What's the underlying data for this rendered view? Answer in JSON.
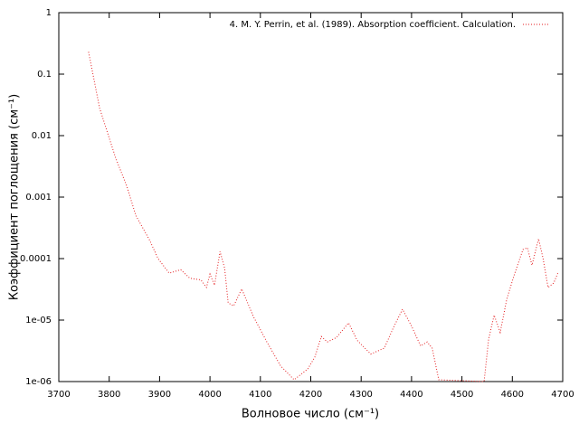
{
  "chart_data": {
    "type": "line",
    "log_y": true,
    "xlabel": "Волновое число (см⁻¹)",
    "ylabel": "Коэффициент поглощения (см⁻¹)",
    "legend": "top-right",
    "xlim": [
      3700,
      4700
    ],
    "xticks": [
      3700,
      3800,
      3900,
      4000,
      4100,
      4200,
      4300,
      4400,
      4500,
      4600,
      4700
    ],
    "ylim": [
      1e-06,
      1
    ],
    "yticks": [
      1,
      0.1,
      0.01,
      0.001,
      0.0001,
      {
        "value": 1e-05,
        "label": "1e-05"
      },
      {
        "value": 1e-06,
        "label": "1e-06"
      }
    ],
    "series": [
      {
        "name": "4. M. Y. Perrin, et al. (1989). Absorption coefficient. Calculation.",
        "color": "#e41a1c",
        "x": [
          3759,
          3781,
          3813,
          3835,
          3853,
          3880,
          3897,
          3919,
          3942,
          3960,
          3982,
          3993,
          4000,
          4009,
          4020,
          4029,
          4036,
          4047,
          4063,
          4086,
          4113,
          4140,
          4167,
          4194,
          4208,
          4221,
          4233,
          4251,
          4275,
          4292,
          4319,
          4346,
          4364,
          4382,
          4400,
          4418,
          4431,
          4441,
          4454,
          4544,
          4553,
          4564,
          4576,
          4589,
          4603,
          4621,
          4630,
          4639,
          4652,
          4661,
          4671,
          4682,
          4691
        ],
        "values": [
          0.23,
          0.028,
          0.0043,
          0.0015,
          0.0005,
          0.0002,
          0.0001,
          5.8e-05,
          6.6e-05,
          4.8e-05,
          4.5e-05,
          3.4e-05,
          5.6e-05,
          3.7e-05,
          0.00013,
          7e-05,
          1.9e-05,
          1.7e-05,
          3.2e-05,
          1.15e-05,
          4.4e-06,
          1.8e-06,
          1.07e-06,
          1.6e-06,
          2.5e-06,
          5.4e-06,
          4.4e-06,
          5.2e-06,
          9e-06,
          4.7e-06,
          2.8e-06,
          3.5e-06,
          7.5e-06,
          1.5e-05,
          8e-06,
          3.8e-06,
          4.4e-06,
          3.5e-06,
          1.07e-06,
          1e-06,
          4.9e-06,
          1.2e-05,
          6.3e-06,
          2.2e-05,
          5.2e-05,
          0.00014,
          0.00015,
          7.8e-05,
          0.00021,
          0.0001,
          3.4e-05,
          4e-05,
          6e-05
        ]
      }
    ]
  }
}
